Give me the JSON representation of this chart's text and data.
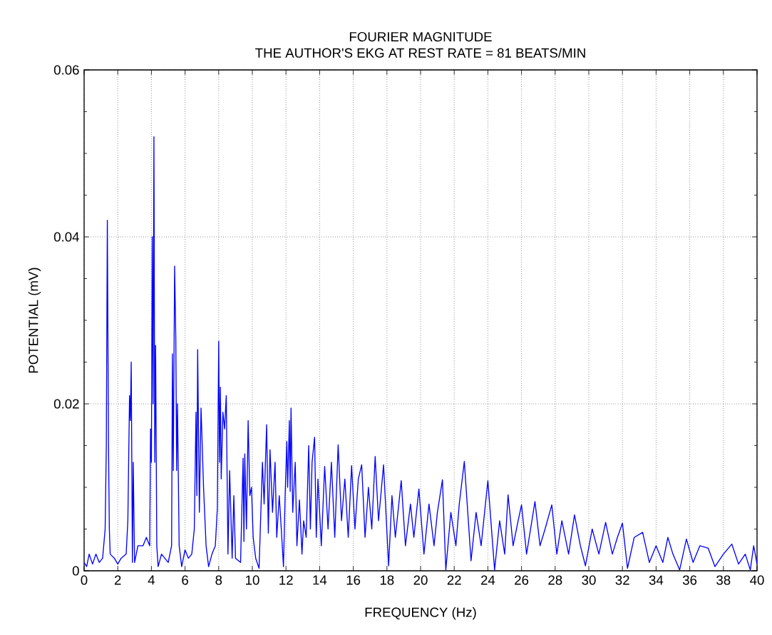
{
  "chart_data": {
    "type": "line",
    "title": "FOURIER MAGNITUDE",
    "subtitle": "THE AUTHOR'S EKG AT REST      RATE = 81 BEATS/MIN",
    "xlabel": "FREQUENCY (Hz)",
    "ylabel": "POTENTIAL (mV)",
    "x": [
      0,
      0.15,
      0.3,
      0.5,
      0.7,
      0.9,
      1.1,
      1.25,
      1.32,
      1.38,
      1.45,
      1.5,
      1.55,
      1.8,
      2.0,
      2.2,
      2.5,
      2.6,
      2.7,
      2.75,
      2.8,
      2.87,
      2.92,
      3.0,
      3.2,
      3.5,
      3.7,
      3.9,
      3.95,
      4.0,
      4.05,
      4.1,
      4.15,
      4.2,
      4.25,
      4.32,
      4.4,
      4.6,
      5.0,
      5.2,
      5.25,
      5.3,
      5.38,
      5.45,
      5.5,
      5.55,
      5.65,
      5.8,
      6.0,
      6.2,
      6.4,
      6.55,
      6.65,
      6.7,
      6.75,
      6.85,
      6.95,
      7.1,
      7.25,
      7.4,
      7.6,
      7.8,
      7.92,
      8.0,
      8.05,
      8.1,
      8.15,
      8.25,
      8.35,
      8.45,
      8.55,
      8.65,
      8.8,
      8.9,
      9.0,
      9.3,
      9.45,
      9.5,
      9.55,
      9.65,
      9.75,
      9.85,
      9.95,
      10.05,
      10.2,
      10.4,
      10.6,
      10.7,
      10.85,
      10.95,
      11.05,
      11.2,
      11.35,
      11.45,
      11.6,
      11.75,
      11.85,
      11.95,
      12.05,
      12.1,
      12.2,
      12.25,
      12.3,
      12.4,
      12.55,
      12.65,
      12.8,
      12.95,
      13.05,
      13.2,
      13.35,
      13.45,
      13.55,
      13.7,
      13.8,
      13.9,
      14.1,
      14.3,
      14.5,
      14.7,
      14.9,
      15.1,
      15.3,
      15.5,
      15.7,
      15.9,
      16.1,
      16.3,
      16.5,
      16.7,
      16.9,
      17.1,
      17.3,
      17.5,
      17.8,
      18.1,
      18.3,
      18.5,
      18.85,
      19.1,
      19.4,
      19.6,
      19.9,
      20.2,
      20.5,
      20.8,
      21.0,
      21.3,
      21.5,
      21.8,
      22.1,
      22.3,
      22.6,
      23.0,
      23.3,
      23.6,
      24.0,
      24.4,
      24.7,
      25.0,
      25.2,
      25.5,
      25.8,
      26.0,
      26.3,
      26.8,
      27.1,
      27.4,
      27.8,
      28.1,
      28.4,
      28.8,
      29.15,
      29.5,
      29.8,
      30.2,
      30.6,
      31.0,
      31.4,
      31.7,
      32.0,
      32.3,
      32.7,
      33.2,
      33.6,
      34.0,
      34.4,
      34.7,
      35.0,
      35.4,
      35.8,
      36.2,
      36.6,
      37.1,
      37.5,
      38.0,
      38.5,
      38.9,
      39.3,
      39.6,
      39.8,
      40
    ],
    "series": [
      {
        "color": "#0000ff",
        "values": [
          0.001,
          0.0005,
          0.002,
          0.0008,
          0.002,
          0.001,
          0.0015,
          0.005,
          0.015,
          0.042,
          0.015,
          0.005,
          0.002,
          0.0015,
          0.0008,
          0.0015,
          0.002,
          0.006,
          0.021,
          0.018,
          0.025,
          0.001,
          0.013,
          0.001,
          0.003,
          0.003,
          0.004,
          0.003,
          0.017,
          0.013,
          0.04,
          0.02,
          0.052,
          0.013,
          0.027,
          0.003,
          0.0005,
          0.002,
          0.001,
          0.003,
          0.026,
          0.012,
          0.0365,
          0.028,
          0.012,
          0.02,
          0.003,
          0.0005,
          0.0025,
          0.0015,
          0.002,
          0.005,
          0.019,
          0.009,
          0.0265,
          0.007,
          0.0195,
          0.01,
          0.003,
          0.0005,
          0.002,
          0.003,
          0.0075,
          0.0275,
          0.013,
          0.022,
          0.011,
          0.019,
          0.017,
          0.021,
          0.002,
          0.012,
          0.0015,
          0.009,
          0.0015,
          0.001,
          0.0135,
          0.0035,
          0.014,
          0.005,
          0.018,
          0.009,
          0.01,
          0.004,
          0.0015,
          0.0003,
          0.013,
          0.008,
          0.0175,
          0.0045,
          0.0145,
          0.007,
          0.013,
          0.004,
          0.009,
          0.004,
          0.0005,
          0.009,
          0.0155,
          0.01,
          0.018,
          0.0095,
          0.0195,
          0.007,
          0.013,
          0.003,
          0.0085,
          0.002,
          0.006,
          0.004,
          0.015,
          0.005,
          0.013,
          0.016,
          0.004,
          0.011,
          0.003,
          0.0125,
          0.005,
          0.013,
          0.004,
          0.0151,
          0.006,
          0.011,
          0.004,
          0.0126,
          0.005,
          0.011,
          0.0127,
          0.004,
          0.01,
          0.005,
          0.0137,
          0.006,
          0.0127,
          0.0006,
          0.009,
          0.004,
          0.0108,
          0.003,
          0.008,
          0.004,
          0.0098,
          0.002,
          0.008,
          0.003,
          0.007,
          0.0109,
          0.0001,
          0.007,
          0.003,
          0.008,
          0.0131,
          0.0012,
          0.007,
          0.003,
          0.0108,
          0.0001,
          0.006,
          0.002,
          0.0091,
          0.003,
          0.006,
          0.0079,
          0.002,
          0.0083,
          0.003,
          0.005,
          0.0079,
          0.002,
          0.006,
          0.002,
          0.0067,
          0.003,
          0.0006,
          0.005,
          0.002,
          0.0058,
          0.002,
          0.004,
          0.0057,
          0.0003,
          0.004,
          0.0046,
          0.001,
          0.003,
          0.001,
          0.004,
          0.002,
          0.0001,
          0.0038,
          0.001,
          0.003,
          0.0027,
          0.0005,
          0.002,
          0.0032,
          0.0008,
          0.002,
          0.0001,
          0.003,
          0.0008
        ]
      }
    ],
    "xlim": [
      0,
      40
    ],
    "ylim": [
      0,
      0.06
    ],
    "xticks": [
      0,
      2,
      4,
      6,
      8,
      10,
      12,
      14,
      16,
      18,
      20,
      22,
      24,
      26,
      28,
      30,
      32,
      34,
      36,
      38,
      40
    ],
    "yticks": [
      0,
      {
        "value": 0.005,
        "label": null
      },
      {
        "value": 0.01,
        "label": null
      },
      {
        "value": 0.015,
        "label": null
      },
      0.02,
      {
        "value": 0.025,
        "label": null
      },
      {
        "value": 0.03,
        "label": null
      },
      {
        "value": 0.035,
        "label": null
      },
      0.04,
      {
        "value": 0.045,
        "label": null
      },
      {
        "value": 0.05,
        "label": null
      },
      {
        "value": 0.055,
        "label": null
      },
      0.06
    ],
    "grid": true,
    "marker": "none",
    "line_style": "solid"
  }
}
